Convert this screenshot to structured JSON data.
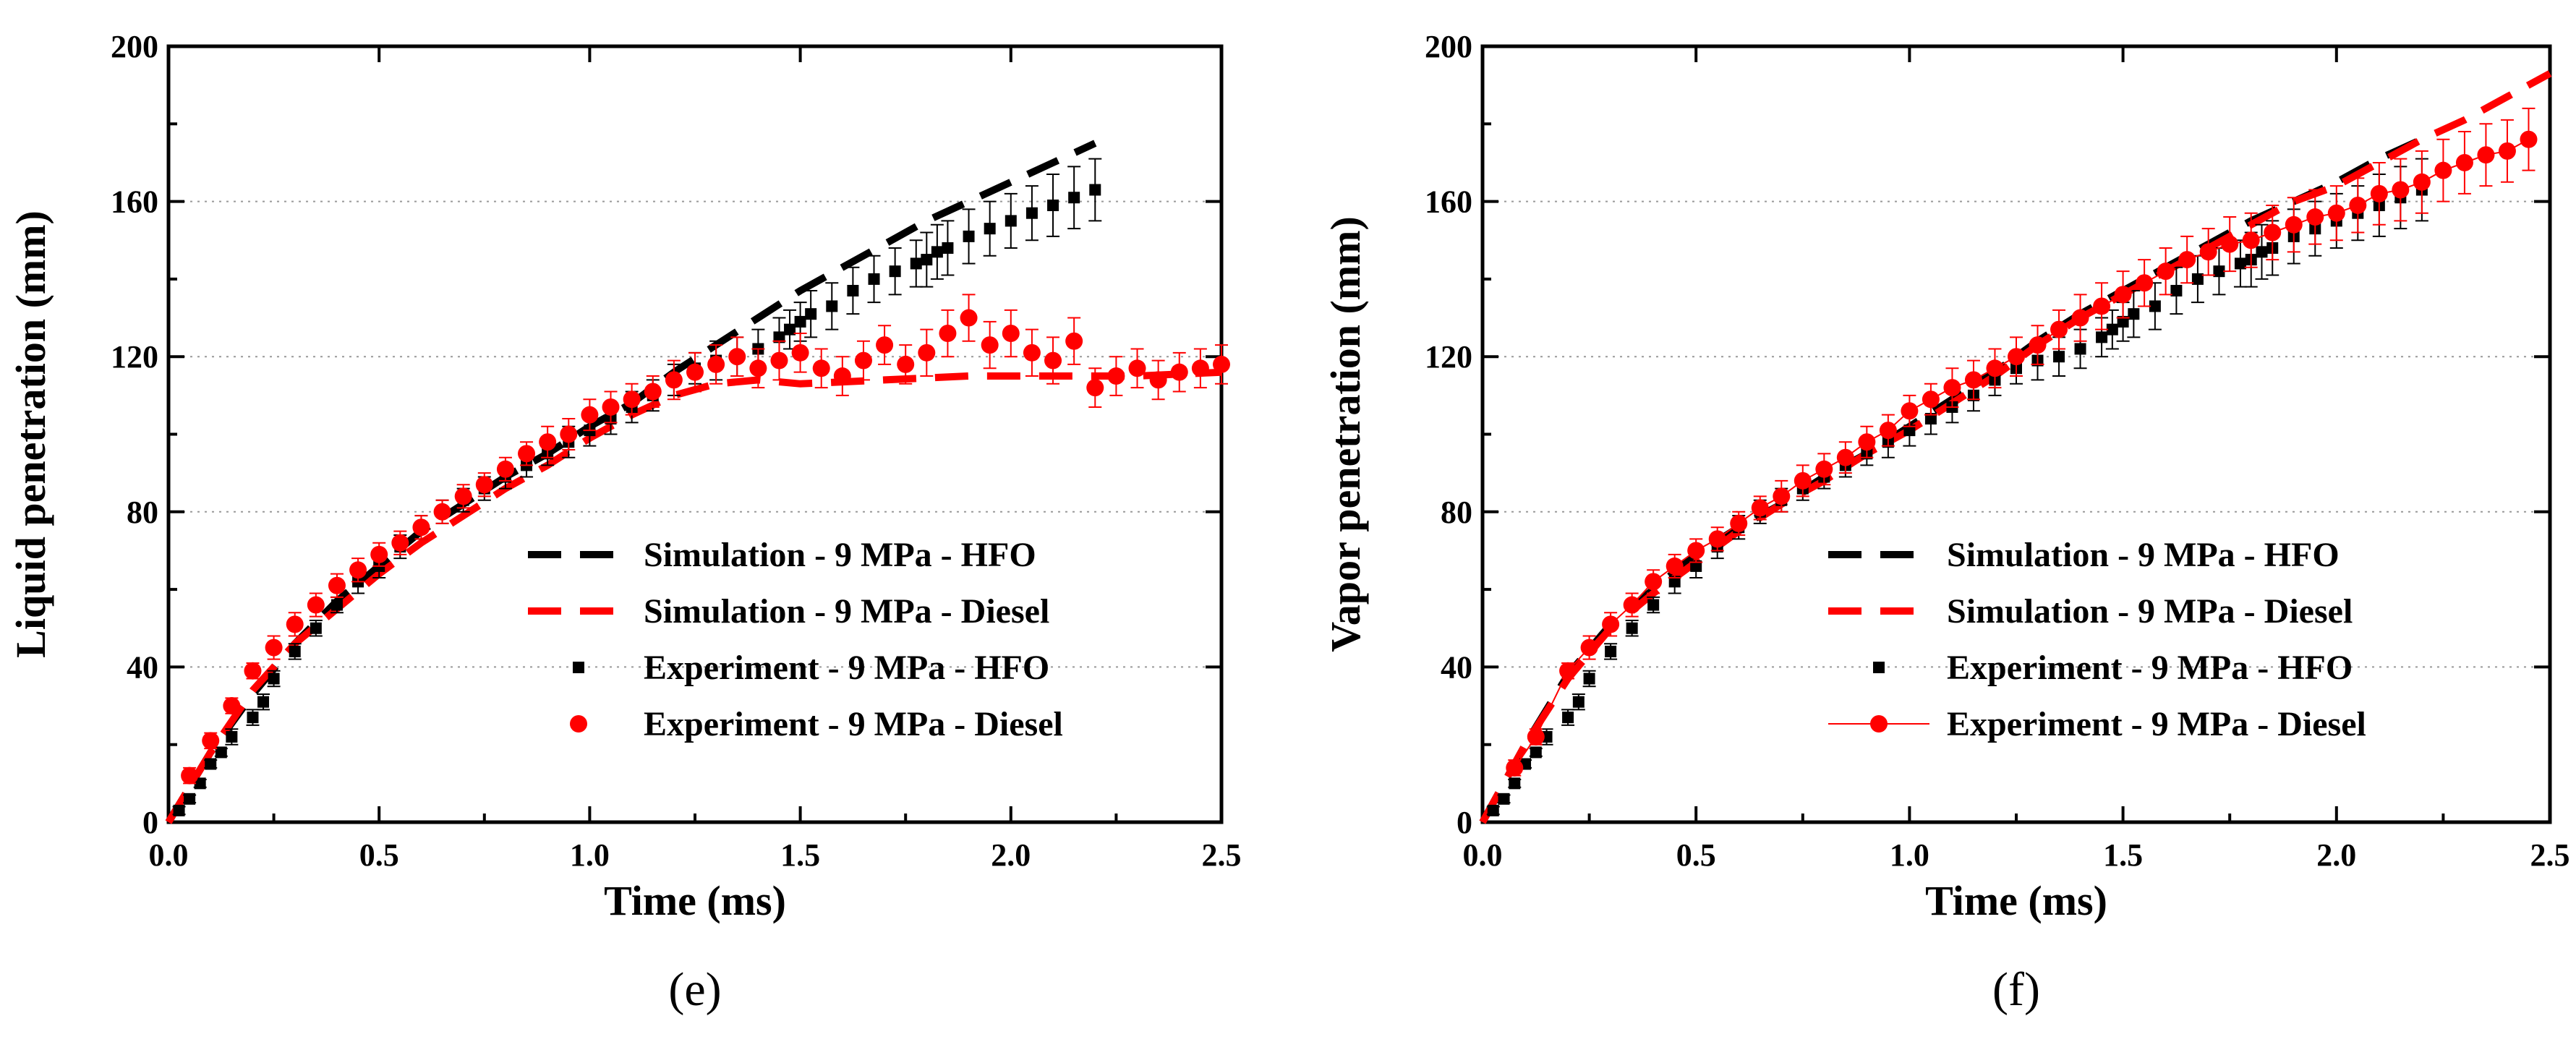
{
  "chart_data": [
    {
      "type": "line",
      "panel_label": "(e)",
      "xlabel": "Time (ms)",
      "ylabel": "Liquid penetration (mm)",
      "xlim": [
        0,
        2.5
      ],
      "ylim": [
        0,
        200
      ],
      "xticks": [
        "0.0",
        "0.5",
        "1.0",
        "1.5",
        "2.0",
        "2.5"
      ],
      "yticks": [
        "0",
        "40",
        "80",
        "120",
        "160",
        "200"
      ],
      "grid": "horizontal dotted",
      "legend_position": "lower-right",
      "colors": {
        "hfo": "#000000",
        "diesel": "#ff0000"
      },
      "legend": [
        "Simulation - 9 MPa - HFO",
        "Simulation - 9 MPa - Diesel",
        "Experiment - 9 MPa - HFO",
        "Experiment - 9 MPa - Diesel"
      ],
      "series": [
        {
          "name": "Simulation - 9 MPa - HFO",
          "style": "dashed",
          "color": "#000000",
          "x": [
            0,
            0.1,
            0.2,
            0.3,
            0.4,
            0.5,
            0.6,
            0.7,
            0.8,
            0.9,
            1.0,
            1.1,
            1.2,
            1.3,
            1.4,
            1.5,
            1.6,
            1.7,
            1.8,
            1.9,
            2.0,
            2.1,
            2.2
          ],
          "y": [
            0,
            18,
            33,
            46,
            57,
            66,
            75,
            82,
            89,
            95,
            102,
            108,
            116,
            123,
            130,
            137,
            143,
            149,
            155,
            160,
            165,
            170,
            175
          ]
        },
        {
          "name": "Simulation - 9 MPa - Diesel",
          "style": "dashed",
          "color": "#ff0000",
          "x": [
            0,
            0.1,
            0.2,
            0.3,
            0.4,
            0.5,
            0.6,
            0.7,
            0.8,
            0.9,
            1.0,
            1.1,
            1.2,
            1.3,
            1.4,
            1.5,
            1.7,
            1.9,
            2.1,
            2.3,
            2.5
          ],
          "y": [
            0,
            18,
            34,
            46,
            55,
            64,
            72,
            79,
            86,
            92,
            99,
            105,
            110,
            113,
            114,
            113,
            114,
            115,
            115,
            115,
            116
          ]
        },
        {
          "name": "Experiment - 9 MPa - HFO",
          "style": "markers",
          "marker": "square",
          "color": "#000000",
          "x": [
            0.025,
            0.05,
            0.075,
            0.1,
            0.125,
            0.15,
            0.2,
            0.225,
            0.25,
            0.3,
            0.35,
            0.4,
            0.45,
            0.5,
            0.55,
            0.6,
            0.65,
            0.7,
            0.75,
            0.8,
            0.85,
            0.9,
            0.95,
            1.0,
            1.05,
            1.1,
            1.15,
            1.2,
            1.25,
            1.3,
            1.35,
            1.4,
            1.45,
            1.475,
            1.5,
            1.525,
            1.575,
            1.625,
            1.675,
            1.725,
            1.775,
            1.8,
            1.825,
            1.85,
            1.9,
            1.95,
            2.0,
            2.05,
            2.1,
            2.15,
            2.2
          ],
          "y": [
            3,
            6,
            10,
            15,
            18,
            22,
            27,
            31,
            37,
            44,
            50,
            56,
            62,
            66,
            71,
            76,
            80,
            83,
            86,
            89,
            92,
            95,
            98,
            101,
            104,
            107,
            110,
            114,
            117,
            119,
            120,
            122,
            125,
            127,
            129,
            131,
            133,
            137,
            140,
            142,
            144,
            145,
            147,
            148,
            151,
            153,
            155,
            157,
            159,
            161,
            163
          ],
          "err": [
            1,
            1,
            1,
            1,
            1,
            2,
            2,
            2,
            2,
            2,
            2,
            2,
            3,
            3,
            3,
            3,
            3,
            3,
            3,
            3,
            3,
            3,
            4,
            4,
            4,
            4,
            4,
            4,
            4,
            5,
            5,
            5,
            5,
            5,
            5,
            6,
            6,
            6,
            6,
            6,
            6,
            7,
            7,
            7,
            7,
            7,
            7,
            7,
            8,
            8,
            8
          ]
        },
        {
          "name": "Experiment - 9 MPa - Diesel",
          "style": "markers",
          "marker": "circle",
          "color": "#ff0000",
          "x": [
            0.05,
            0.1,
            0.15,
            0.2,
            0.25,
            0.3,
            0.35,
            0.4,
            0.45,
            0.5,
            0.55,
            0.6,
            0.65,
            0.7,
            0.75,
            0.8,
            0.85,
            0.9,
            0.95,
            1.0,
            1.05,
            1.1,
            1.15,
            1.2,
            1.25,
            1.3,
            1.35,
            1.4,
            1.45,
            1.5,
            1.55,
            1.6,
            1.65,
            1.7,
            1.75,
            1.8,
            1.85,
            1.9,
            1.95,
            2.0,
            2.05,
            2.1,
            2.15,
            2.2,
            2.25,
            2.3,
            2.35,
            2.4,
            2.45,
            2.5
          ],
          "y": [
            12,
            21,
            30,
            39,
            45,
            51,
            56,
            61,
            65,
            69,
            72,
            76,
            80,
            84,
            87,
            91,
            95,
            98,
            100,
            105,
            107,
            109,
            111,
            114,
            116,
            118,
            120,
            117,
            119,
            121,
            117,
            115,
            119,
            123,
            118,
            121,
            126,
            130,
            123,
            126,
            121,
            119,
            124,
            112,
            115,
            117,
            114,
            116,
            117,
            118
          ],
          "err": [
            2,
            2,
            2,
            2,
            3,
            3,
            3,
            3,
            3,
            3,
            3,
            3,
            3,
            3,
            3,
            3,
            3,
            4,
            4,
            4,
            4,
            4,
            4,
            5,
            5,
            5,
            5,
            5,
            5,
            5,
            5,
            5,
            5,
            5,
            5,
            6,
            6,
            6,
            6,
            6,
            6,
            6,
            6,
            5,
            5,
            5,
            5,
            5,
            5,
            5
          ]
        }
      ]
    },
    {
      "type": "line",
      "panel_label": "(f)",
      "xlabel": "Time (ms)",
      "ylabel": "Vapor penetration (mm)",
      "xlim": [
        0,
        2.5
      ],
      "ylim": [
        0,
        200
      ],
      "xticks": [
        "0.0",
        "0.5",
        "1.0",
        "1.5",
        "2.0",
        "2.5"
      ],
      "yticks": [
        "0",
        "40",
        "80",
        "120",
        "160",
        "200"
      ],
      "grid": "horizontal dotted",
      "legend_position": "lower-right",
      "colors": {
        "hfo": "#000000",
        "diesel": "#ff0000"
      },
      "legend": [
        "Simulation - 9 MPa - HFO",
        "Simulation - 9 MPa - Diesel",
        "Experiment - 9 MPa - HFO",
        "Experiment - 9 MPa - Diesel"
      ],
      "series": [
        {
          "name": "Simulation - 9 MPa - HFO",
          "style": "dashed",
          "color": "#000000",
          "x": [
            0,
            0.1,
            0.2,
            0.3,
            0.4,
            0.5,
            0.6,
            0.7,
            0.8,
            0.9,
            1.0,
            1.1,
            1.2,
            1.3,
            1.4,
            1.5,
            1.6,
            1.7,
            1.8,
            1.9,
            2.0,
            2.1,
            2.2
          ],
          "y": [
            0,
            20,
            38,
            51,
            60,
            69,
            76,
            82,
            89,
            95,
            102,
            109,
            116,
            124,
            131,
            137,
            143,
            149,
            155,
            160,
            165,
            171,
            176
          ]
        },
        {
          "name": "Simulation - 9 MPa - Diesel",
          "style": "dashed",
          "color": "#ff0000",
          "x": [
            0,
            0.1,
            0.2,
            0.3,
            0.4,
            0.5,
            0.6,
            0.7,
            0.8,
            0.9,
            1.0,
            1.1,
            1.2,
            1.3,
            1.4,
            1.5,
            1.6,
            1.7,
            1.8,
            1.9,
            2.0,
            2.1,
            2.2,
            2.3,
            2.4,
            2.5
          ],
          "y": [
            0,
            20,
            37,
            50,
            59,
            67,
            75,
            82,
            88,
            95,
            101,
            108,
            115,
            123,
            130,
            136,
            142,
            148,
            154,
            160,
            164,
            170,
            176,
            181,
            187,
            193
          ]
        },
        {
          "name": "Experiment - 9 MPa - HFO",
          "style": "markers",
          "marker": "square",
          "color": "#000000",
          "x": [
            0.025,
            0.05,
            0.075,
            0.1,
            0.125,
            0.15,
            0.2,
            0.225,
            0.25,
            0.3,
            0.35,
            0.4,
            0.45,
            0.5,
            0.55,
            0.6,
            0.65,
            0.7,
            0.75,
            0.8,
            0.85,
            0.9,
            0.95,
            1.0,
            1.05,
            1.1,
            1.15,
            1.2,
            1.25,
            1.3,
            1.35,
            1.4,
            1.45,
            1.475,
            1.5,
            1.525,
            1.575,
            1.625,
            1.675,
            1.725,
            1.775,
            1.8,
            1.825,
            1.85,
            1.9,
            1.95,
            2.0,
            2.05,
            2.1,
            2.15,
            2.2
          ],
          "y": [
            3,
            6,
            10,
            15,
            18,
            22,
            27,
            31,
            37,
            44,
            50,
            56,
            62,
            66,
            71,
            76,
            80,
            83,
            86,
            89,
            92,
            95,
            98,
            101,
            104,
            107,
            110,
            114,
            117,
            119,
            120,
            122,
            125,
            127,
            129,
            131,
            133,
            137,
            140,
            142,
            144,
            145,
            147,
            148,
            151,
            153,
            155,
            157,
            159,
            161,
            163
          ],
          "err": [
            1,
            1,
            1,
            1,
            1,
            2,
            2,
            2,
            2,
            2,
            2,
            2,
            3,
            3,
            3,
            3,
            3,
            3,
            3,
            3,
            3,
            3,
            4,
            4,
            4,
            4,
            4,
            4,
            4,
            5,
            5,
            5,
            5,
            5,
            5,
            6,
            6,
            6,
            6,
            6,
            6,
            7,
            7,
            7,
            7,
            7,
            7,
            7,
            8,
            8,
            8
          ]
        },
        {
          "name": "Experiment - 9 MPa - Diesel",
          "style": "line-markers",
          "marker": "circle",
          "color": "#ff0000",
          "x": [
            0.075,
            0.125,
            0.2,
            0.25,
            0.3,
            0.35,
            0.4,
            0.45,
            0.5,
            0.55,
            0.6,
            0.65,
            0.7,
            0.75,
            0.8,
            0.85,
            0.9,
            0.95,
            1.0,
            1.05,
            1.1,
            1.15,
            1.2,
            1.25,
            1.3,
            1.35,
            1.4,
            1.45,
            1.5,
            1.55,
            1.6,
            1.65,
            1.7,
            1.75,
            1.8,
            1.85,
            1.9,
            1.95,
            2.0,
            2.05,
            2.1,
            2.15,
            2.2,
            2.25,
            2.3,
            2.35,
            2.4,
            2.45
          ],
          "y": [
            14,
            22,
            39,
            45,
            51,
            56,
            62,
            66,
            70,
            73,
            77,
            81,
            84,
            88,
            91,
            94,
            98,
            101,
            106,
            109,
            112,
            114,
            117,
            120,
            123,
            127,
            130,
            133,
            136,
            139,
            142,
            145,
            147,
            149,
            150,
            152,
            154,
            156,
            157,
            159,
            162,
            163,
            165,
            168,
            170,
            172,
            173,
            176
          ],
          "err": [
            2,
            2,
            2,
            3,
            3,
            3,
            3,
            3,
            3,
            3,
            3,
            3,
            4,
            4,
            4,
            4,
            4,
            4,
            4,
            4,
            5,
            5,
            5,
            5,
            5,
            5,
            6,
            6,
            6,
            6,
            6,
            6,
            6,
            7,
            7,
            7,
            7,
            7,
            7,
            7,
            8,
            8,
            8,
            8,
            8,
            8,
            8,
            8
          ]
        }
      ]
    }
  ]
}
